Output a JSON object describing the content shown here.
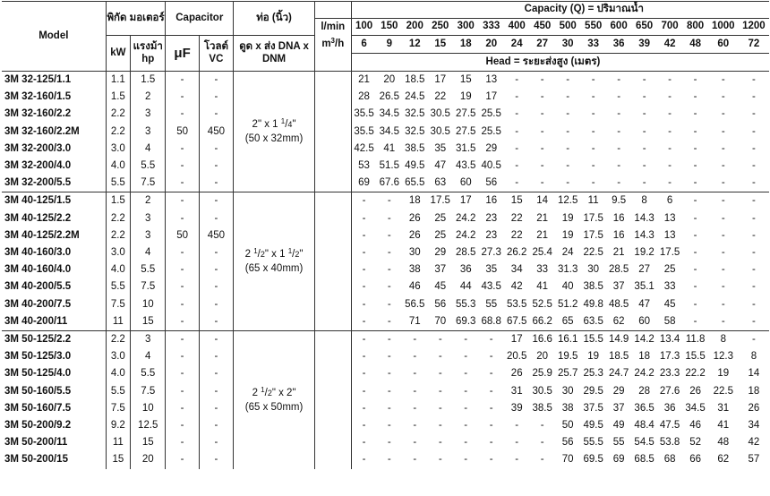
{
  "headers": {
    "model": "Model",
    "power": "พิกัด มอเตอร์",
    "capacitor": "Capacitor",
    "pipe": "ท่อ (นิ้ว)",
    "lmin": "l/min",
    "m3h": "m3/h",
    "capacity": "Capacity (Q) = ปริมาณน้ำ",
    "head": "Head = ระยะส่งสูง (เมตร)",
    "kw": "kW",
    "hp": "แรงม้า hp",
    "uf": "μF",
    "vc": "โวลต์ VC",
    "dna": "ดูด x ส่ง DNA x DNM",
    "flow_lmin": [
      "100",
      "150",
      "200",
      "250",
      "300",
      "333",
      "400",
      "450",
      "500",
      "550",
      "600",
      "650",
      "700",
      "800",
      "1000",
      "1200"
    ],
    "flow_m3h": [
      "6",
      "9",
      "12",
      "15",
      "18",
      "20",
      "24",
      "27",
      "30",
      "33",
      "36",
      "39",
      "42",
      "48",
      "60",
      "72"
    ]
  },
  "groups": [
    {
      "pipe_line1": "2\" x 1 1/4\"",
      "pipe_line2": "(50 x 32mm)",
      "rows": [
        {
          "model": "3M 32-125/1.1",
          "kw": "1.1",
          "hp": "1.5",
          "uf": "-",
          "vc": "-",
          "head": [
            "21",
            "20",
            "18.5",
            "17",
            "15",
            "13",
            "-",
            "-",
            "-",
            "-",
            "-",
            "-",
            "-",
            "-",
            "-",
            "-"
          ]
        },
        {
          "model": "3M 32-160/1.5",
          "kw": "1.5",
          "hp": "2",
          "uf": "-",
          "vc": "-",
          "head": [
            "28",
            "26.5",
            "24.5",
            "22",
            "19",
            "17",
            "-",
            "-",
            "-",
            "-",
            "-",
            "-",
            "-",
            "-",
            "-",
            "-"
          ]
        },
        {
          "model": "3M 32-160/2.2",
          "kw": "2.2",
          "hp": "3",
          "uf": "-",
          "vc": "-",
          "head": [
            "35.5",
            "34.5",
            "32.5",
            "30.5",
            "27.5",
            "25.5",
            "-",
            "-",
            "-",
            "-",
            "-",
            "-",
            "-",
            "-",
            "-",
            "-"
          ]
        },
        {
          "model": "3M 32-160/2.2M",
          "kw": "2.2",
          "hp": "3",
          "uf": "50",
          "vc": "450",
          "head": [
            "35.5",
            "34.5",
            "32.5",
            "30.5",
            "27.5",
            "25.5",
            "-",
            "-",
            "-",
            "-",
            "-",
            "-",
            "-",
            "-",
            "-",
            "-"
          ]
        },
        {
          "model": "3M 32-200/3.0",
          "kw": "3.0",
          "hp": "4",
          "uf": "-",
          "vc": "-",
          "head": [
            "42.5",
            "41",
            "38.5",
            "35",
            "31.5",
            "29",
            "-",
            "-",
            "-",
            "-",
            "-",
            "-",
            "-",
            "-",
            "-",
            "-"
          ]
        },
        {
          "model": "3M 32-200/4.0",
          "kw": "4.0",
          "hp": "5.5",
          "uf": "-",
          "vc": "-",
          "head": [
            "53",
            "51.5",
            "49.5",
            "47",
            "43.5",
            "40.5",
            "-",
            "-",
            "-",
            "-",
            "-",
            "-",
            "-",
            "-",
            "-",
            "-"
          ]
        },
        {
          "model": "3M 32-200/5.5",
          "kw": "5.5",
          "hp": "7.5",
          "uf": "-",
          "vc": "-",
          "head": [
            "69",
            "67.6",
            "65.5",
            "63",
            "60",
            "56",
            "-",
            "-",
            "-",
            "-",
            "-",
            "-",
            "-",
            "-",
            "-",
            "-"
          ]
        }
      ]
    },
    {
      "pipe_line1": "2 1/2\" x 1 1/2\"",
      "pipe_line2": "(65 x 40mm)",
      "rows": [
        {
          "model": "3M 40-125/1.5",
          "kw": "1.5",
          "hp": "2",
          "uf": "-",
          "vc": "-",
          "head": [
            "-",
            "-",
            "18",
            "17.5",
            "17",
            "16",
            "15",
            "14",
            "12.5",
            "11",
            "9.5",
            "8",
            "6",
            "-",
            "-",
            "-"
          ]
        },
        {
          "model": "3M 40-125/2.2",
          "kw": "2.2",
          "hp": "3",
          "uf": "-",
          "vc": "-",
          "head": [
            "-",
            "-",
            "26",
            "25",
            "24.2",
            "23",
            "22",
            "21",
            "19",
            "17.5",
            "16",
            "14.3",
            "13",
            "-",
            "-",
            "-"
          ]
        },
        {
          "model": "3M 40-125/2.2M",
          "kw": "2.2",
          "hp": "3",
          "uf": "50",
          "vc": "450",
          "head": [
            "-",
            "-",
            "26",
            "25",
            "24.2",
            "23",
            "22",
            "21",
            "19",
            "17.5",
            "16",
            "14.3",
            "13",
            "-",
            "-",
            "-"
          ]
        },
        {
          "model": "3M 40-160/3.0",
          "kw": "3.0",
          "hp": "4",
          "uf": "-",
          "vc": "-",
          "head": [
            "-",
            "-",
            "30",
            "29",
            "28.5",
            "27.3",
            "26.2",
            "25.4",
            "24",
            "22.5",
            "21",
            "19.2",
            "17.5",
            "-",
            "-",
            "-"
          ]
        },
        {
          "model": "3M 40-160/4.0",
          "kw": "4.0",
          "hp": "5.5",
          "uf": "-",
          "vc": "-",
          "head": [
            "-",
            "-",
            "38",
            "37",
            "36",
            "35",
            "34",
            "33",
            "31.3",
            "30",
            "28.5",
            "27",
            "25",
            "-",
            "-",
            "-"
          ]
        },
        {
          "model": "3M 40-200/5.5",
          "kw": "5.5",
          "hp": "7.5",
          "uf": "-",
          "vc": "-",
          "head": [
            "-",
            "-",
            "46",
            "45",
            "44",
            "43.5",
            "42",
            "41",
            "40",
            "38.5",
            "37",
            "35.1",
            "33",
            "-",
            "-",
            "-"
          ]
        },
        {
          "model": "3M 40-200/7.5",
          "kw": "7.5",
          "hp": "10",
          "uf": "-",
          "vc": "-",
          "head": [
            "-",
            "-",
            "56.5",
            "56",
            "55.3",
            "55",
            "53.5",
            "52.5",
            "51.2",
            "49.8",
            "48.5",
            "47",
            "45",
            "-",
            "-",
            "-"
          ]
        },
        {
          "model": "3M 40-200/11",
          "kw": "11",
          "hp": "15",
          "uf": "-",
          "vc": "-",
          "head": [
            "-",
            "-",
            "71",
            "70",
            "69.3",
            "68.8",
            "67.5",
            "66.2",
            "65",
            "63.5",
            "62",
            "60",
            "58",
            "-",
            "-",
            "-"
          ]
        }
      ]
    },
    {
      "pipe_line1": "2 1/2\" x 2\"",
      "pipe_line2": "(65 x 50mm)",
      "rows": [
        {
          "model": "3M 50-125/2.2",
          "kw": "2.2",
          "hp": "3",
          "uf": "-",
          "vc": "-",
          "head": [
            "-",
            "-",
            "-",
            "-",
            "-",
            "-",
            "17",
            "16.6",
            "16.1",
            "15.5",
            "14.9",
            "14.2",
            "13.4",
            "11.8",
            "8",
            "-"
          ]
        },
        {
          "model": "3M 50-125/3.0",
          "kw": "3.0",
          "hp": "4",
          "uf": "-",
          "vc": "-",
          "head": [
            "-",
            "-",
            "-",
            "-",
            "-",
            "-",
            "20.5",
            "20",
            "19.5",
            "19",
            "18.5",
            "18",
            "17.3",
            "15.5",
            "12.3",
            "8"
          ]
        },
        {
          "model": "3M 50-125/4.0",
          "kw": "4.0",
          "hp": "5.5",
          "uf": "-",
          "vc": "-",
          "head": [
            "-",
            "-",
            "-",
            "-",
            "-",
            "-",
            "26",
            "25.9",
            "25.7",
            "25.3",
            "24.7",
            "24.2",
            "23.3",
            "22.2",
            "19",
            "14"
          ]
        },
        {
          "model": "3M 50-160/5.5",
          "kw": "5.5",
          "hp": "7.5",
          "uf": "-",
          "vc": "-",
          "head": [
            "-",
            "-",
            "-",
            "-",
            "-",
            "-",
            "31",
            "30.5",
            "30",
            "29.5",
            "29",
            "28",
            "27.6",
            "26",
            "22.5",
            "18"
          ]
        },
        {
          "model": "3M 50-160/7.5",
          "kw": "7.5",
          "hp": "10",
          "uf": "-",
          "vc": "-",
          "head": [
            "-",
            "-",
            "-",
            "-",
            "-",
            "-",
            "39",
            "38.5",
            "38",
            "37.5",
            "37",
            "36.5",
            "36",
            "34.5",
            "31",
            "26"
          ]
        },
        {
          "model": "3M 50-200/9.2",
          "kw": "9.2",
          "hp": "12.5",
          "uf": "-",
          "vc": "-",
          "head": [
            "-",
            "-",
            "-",
            "-",
            "-",
            "-",
            "-",
            "-",
            "50",
            "49.5",
            "49",
            "48.4",
            "47.5",
            "46",
            "41",
            "34"
          ]
        },
        {
          "model": "3M 50-200/11",
          "kw": "11",
          "hp": "15",
          "uf": "-",
          "vc": "-",
          "head": [
            "-",
            "-",
            "-",
            "-",
            "-",
            "-",
            "-",
            "-",
            "56",
            "55.5",
            "55",
            "54.5",
            "53.8",
            "52",
            "48",
            "42"
          ]
        },
        {
          "model": "3M 50-200/15",
          "kw": "15",
          "hp": "20",
          "uf": "-",
          "vc": "-",
          "head": [
            "-",
            "-",
            "-",
            "-",
            "-",
            "-",
            "-",
            "-",
            "70",
            "69.5",
            "69",
            "68.5",
            "68",
            "66",
            "62",
            "57"
          ]
        }
      ]
    }
  ]
}
